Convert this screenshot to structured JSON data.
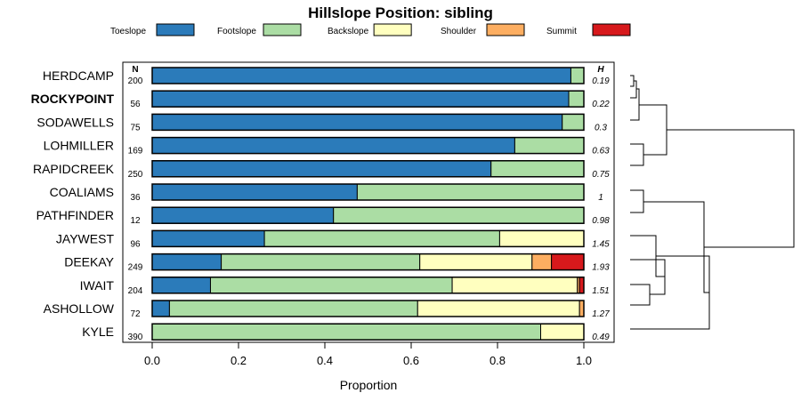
{
  "chart_data": {
    "type": "bar",
    "orientation": "horizontal-stacked",
    "title": "Hillslope Position: sibling",
    "xlabel": "Proportion",
    "ylabel": "",
    "xlim": [
      0,
      1
    ],
    "xticks": [
      "0.0",
      "0.2",
      "0.4",
      "0.6",
      "0.8",
      "1.0"
    ],
    "n_header": "N",
    "h_header": "H",
    "legend_position": "top",
    "legend": [
      {
        "name": "Toeslope",
        "color": "#2b7bba"
      },
      {
        "name": "Footslope",
        "color": "#abdda4"
      },
      {
        "name": "Backslope",
        "color": "#ffffbf"
      },
      {
        "name": "Shoulder",
        "color": "#fdae61"
      },
      {
        "name": "Summit",
        "color": "#d7191c"
      }
    ],
    "rows": [
      {
        "label": "HERDCAMP",
        "bold": false,
        "n": "200",
        "h": "0.19",
        "values": [
          0.97,
          0.03,
          0,
          0,
          0
        ]
      },
      {
        "label": "ROCKYPOINT",
        "bold": true,
        "n": "56",
        "h": "0.22",
        "values": [
          0.965,
          0.035,
          0,
          0,
          0
        ]
      },
      {
        "label": "SODAWELLS",
        "bold": false,
        "n": "75",
        "h": "0.3",
        "values": [
          0.95,
          0.05,
          0,
          0,
          0
        ]
      },
      {
        "label": "LOHMILLER",
        "bold": false,
        "n": "169",
        "h": "0.63",
        "values": [
          0.84,
          0.16,
          0,
          0,
          0
        ]
      },
      {
        "label": "RAPIDCREEK",
        "bold": false,
        "n": "250",
        "h": "0.75",
        "values": [
          0.785,
          0.215,
          0,
          0,
          0
        ]
      },
      {
        "label": "COALIAMS",
        "bold": false,
        "n": "36",
        "h": "1",
        "values": [
          0.475,
          0.525,
          0,
          0,
          0
        ]
      },
      {
        "label": "PATHFINDER",
        "bold": false,
        "n": "12",
        "h": "0.98",
        "values": [
          0.42,
          0.58,
          0,
          0,
          0
        ]
      },
      {
        "label": "JAYWEST",
        "bold": false,
        "n": "96",
        "h": "1.45",
        "values": [
          0.26,
          0.545,
          0.195,
          0,
          0
        ]
      },
      {
        "label": "DEEKAY",
        "bold": false,
        "n": "249",
        "h": "1.93",
        "values": [
          0.16,
          0.46,
          0.26,
          0.045,
          0.075
        ]
      },
      {
        "label": "IWAIT",
        "bold": false,
        "n": "204",
        "h": "1.51",
        "values": [
          0.135,
          0.56,
          0.29,
          0.005,
          0.01
        ]
      },
      {
        "label": "ASHOLLOW",
        "bold": false,
        "n": "72",
        "h": "1.27",
        "values": [
          0.04,
          0.575,
          0.375,
          0.01,
          0
        ]
      },
      {
        "label": "KYLE",
        "bold": false,
        "n": "390",
        "h": "0.49",
        "values": [
          0,
          0.9,
          0.1,
          0,
          0
        ]
      }
    ]
  }
}
